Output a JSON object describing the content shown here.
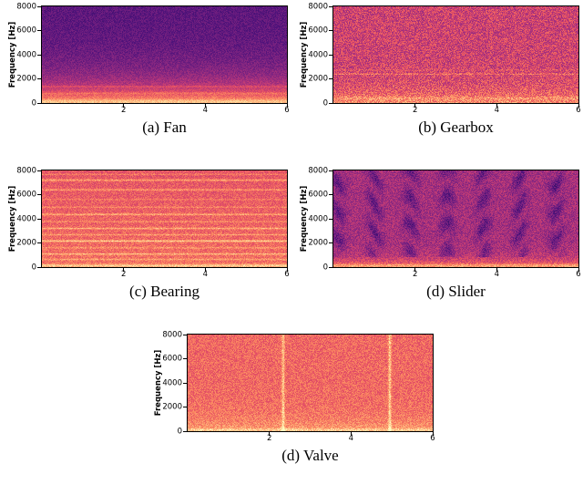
{
  "figure": {
    "kind": "spectrogram-grid",
    "background": "#ffffff",
    "colormap_name": "magma"
  },
  "chart_data": [
    {
      "type": "heatmap",
      "id": "fan",
      "caption": "(a) Fan",
      "ylabel": "Frequency [Hz]",
      "xlabel": "",
      "x_range": [
        0,
        6
      ],
      "y_range": [
        0,
        8000
      ],
      "x_ticks": [
        2,
        4,
        6
      ],
      "y_ticks": [
        0,
        2000,
        4000,
        6000,
        8000
      ],
      "colormap": "magma",
      "pattern": {
        "seed": 11,
        "profile": "exp",
        "base_top": 0.28,
        "base_bottom": 0.85,
        "decay": 0.2,
        "noise": 0.06,
        "h_lines": [
          {
            "f": 0.02,
            "s": 0.08,
            "w": 0.012
          },
          {
            "f": 0.1,
            "s": 0.07,
            "w": 0.008
          },
          {
            "f": 0.17,
            "s": 0.09,
            "w": 0.006
          }
        ],
        "v_lines": []
      }
    },
    {
      "type": "heatmap",
      "id": "gearbox",
      "caption": "(b) Gearbox",
      "ylabel": "Frequency [Hz]",
      "xlabel": "",
      "x_range": [
        0,
        6
      ],
      "y_range": [
        0,
        8000
      ],
      "x_ticks": [
        2,
        4,
        6
      ],
      "y_ticks": [
        0,
        2000,
        4000,
        6000,
        8000
      ],
      "colormap": "magma",
      "pattern": {
        "seed": 22,
        "profile": "exp",
        "base_top": 0.56,
        "base_bottom": 0.78,
        "decay": 0.12,
        "noise": 0.13,
        "h_lines": [
          {
            "f": 0.05,
            "s": 0.08,
            "w": 0.012
          },
          {
            "f": 0.3,
            "s": 0.13,
            "w": 0.005
          },
          {
            "f": 0.34,
            "s": 0.07,
            "w": 0.004
          }
        ],
        "v_lines": []
      }
    },
    {
      "type": "heatmap",
      "id": "bearing",
      "caption": "(c) Bearing",
      "ylabel": "Frequency [Hz]",
      "xlabel": "",
      "x_range": [
        0,
        6
      ],
      "y_range": [
        0,
        8000
      ],
      "x_ticks": [
        2,
        4,
        6
      ],
      "y_ticks": [
        0,
        2000,
        4000,
        6000,
        8000
      ],
      "colormap": "magma",
      "pattern": {
        "seed": 33,
        "profile": "linear",
        "base_top": 0.63,
        "base_bottom": 0.7,
        "noise": 0.075,
        "h_lines": [
          {
            "f": 0.015,
            "s": 0.2,
            "w": 0.012
          },
          {
            "f": 0.08,
            "s": 0.1,
            "w": 0.007
          },
          {
            "f": 0.135,
            "s": 0.16,
            "w": 0.006
          },
          {
            "f": 0.2,
            "s": 0.09,
            "w": 0.007
          },
          {
            "f": 0.27,
            "s": 0.2,
            "w": 0.007
          },
          {
            "f": 0.335,
            "s": 0.11,
            "w": 0.006
          },
          {
            "f": 0.4,
            "s": 0.15,
            "w": 0.007
          },
          {
            "f": 0.47,
            "s": 0.09,
            "w": 0.006
          },
          {
            "f": 0.545,
            "s": 0.15,
            "w": 0.007
          },
          {
            "f": 0.62,
            "s": 0.09,
            "w": 0.006
          },
          {
            "f": 0.7,
            "s": 0.07,
            "w": 0.006
          },
          {
            "f": 0.8,
            "s": 0.13,
            "w": 0.007
          },
          {
            "f": 0.9,
            "s": 0.15,
            "w": 0.008
          },
          {
            "f": 0.96,
            "s": 0.09,
            "w": 0.006
          }
        ],
        "v_lines": []
      }
    },
    {
      "type": "heatmap",
      "id": "slider",
      "caption": "(d) Slider",
      "ylabel": "Frequency [Hz]",
      "xlabel": "",
      "x_range": [
        0,
        6
      ],
      "y_range": [
        0,
        8000
      ],
      "x_ticks": [
        2,
        4,
        6
      ],
      "y_ticks": [
        0,
        2000,
        4000,
        6000,
        8000
      ],
      "colormap": "magma",
      "pattern": {
        "seed": 44,
        "profile": "exp",
        "base_top": 0.46,
        "base_bottom": 0.78,
        "decay": 0.07,
        "noise": 0.09,
        "h_lines": [
          {
            "f": 0.02,
            "s": 0.1,
            "w": 0.01
          }
        ],
        "v_lines": [],
        "bands": {
          "period": 0.148,
          "phase": 0.7,
          "strength": -0.17,
          "power": 2,
          "min_f": 0.1
        }
      }
    },
    {
      "type": "heatmap",
      "id": "valve",
      "caption": "(d) Valve",
      "ylabel": "Frequency [Hz]",
      "xlabel": "",
      "x_range": [
        0,
        6
      ],
      "y_range": [
        0,
        8000
      ],
      "x_ticks": [
        2,
        4,
        6
      ],
      "y_ticks": [
        0,
        2000,
        4000,
        6000,
        8000
      ],
      "colormap": "magma",
      "pattern": {
        "seed": 55,
        "profile": "exp",
        "base_top": 0.68,
        "base_bottom": 0.82,
        "decay": 0.12,
        "noise": 0.085,
        "h_lines": [
          {
            "f": 0.015,
            "s": 0.1,
            "w": 0.01
          }
        ],
        "v_lines": [
          {
            "x": 0.39,
            "s": 0.2,
            "w": 0.0045
          },
          {
            "x": 0.825,
            "s": 0.2,
            "w": 0.0045
          }
        ]
      }
    }
  ]
}
